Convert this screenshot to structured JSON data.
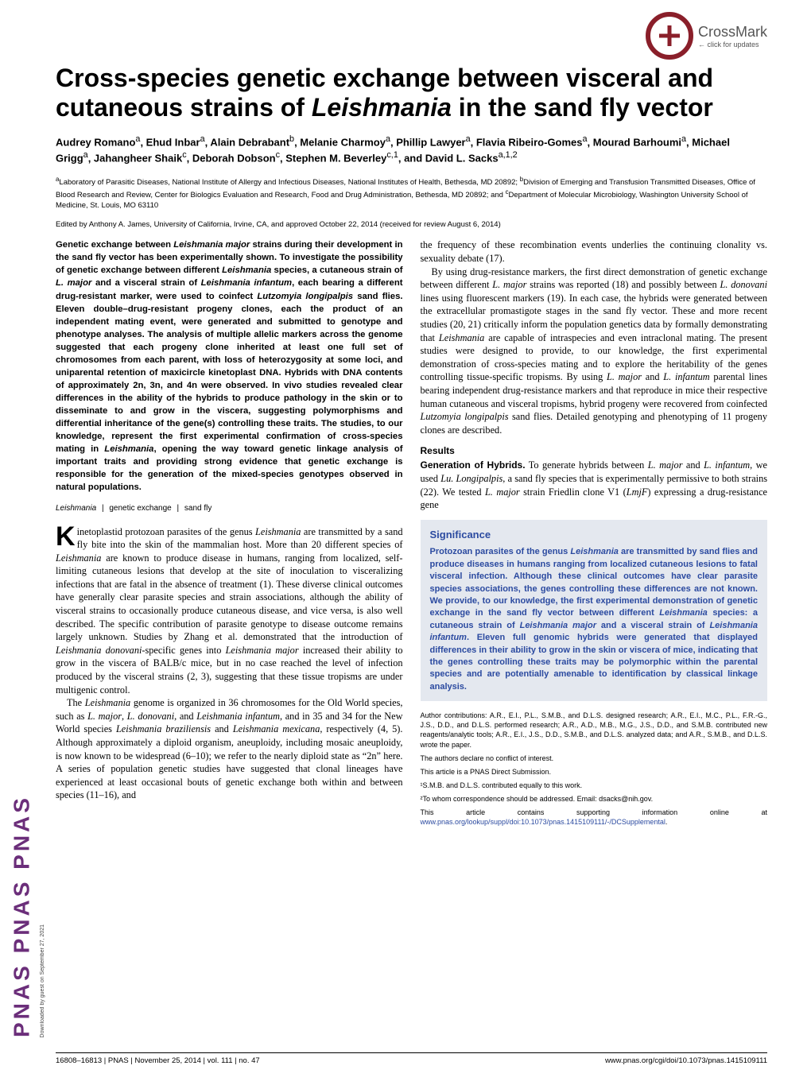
{
  "journal_sidebar": "PNAS  PNAS  PNAS",
  "crossmark": {
    "label": "CrossMark",
    "sub": "← click for updates"
  },
  "title_html": "Cross-species genetic exchange between visceral and cutaneous strains of Leishmania in the sand fly vector",
  "authors_html": "Audrey Romano<sup>a</sup>, Ehud Inbar<sup>a</sup>, Alain Debrabant<sup>b</sup>, Melanie Charmoy<sup>a</sup>, Phillip Lawyer<sup>a</sup>, Flavia Ribeiro-Gomes<sup>a</sup>, Mourad Barhoumi<sup>a</sup>, Michael Grigg<sup>a</sup>, Jahangheer Shaik<sup>c</sup>, Deborah Dobson<sup>c</sup>, Stephen M. Beverley<sup>c,1</sup>, and David L. Sacks<sup>a,1,2</sup>",
  "affiliations_html": "<sup>a</sup>Laboratory of Parasitic Diseases, National Institute of Allergy and Infectious Diseases, National Institutes of Health, Bethesda, MD 20892; <sup>b</sup>Division of Emerging and Transfusion Transmitted Diseases, Office of Blood Research and Review, Center for Biologics Evaluation and Research, Food and Drug Administration, Bethesda, MD 20892; and <sup>c</sup>Department of Molecular Microbiology, Washington University School of Medicine, St. Louis, MO 63110",
  "edited": "Edited by Anthony A. James, University of California, Irvine, CA, and approved October 22, 2014 (received for review August 6, 2014)",
  "abstract_html": "Genetic exchange between <span class='italic'>Leishmania major</span> strains during their development in the sand fly vector has been experimentally shown. To investigate the possibility of genetic exchange between different <span class='italic'>Leishmania</span> species, a cutaneous strain of <span class='italic'>L. major</span> and a visceral strain of <span class='italic'>Leishmania infantum</span>, each bearing a different drug-resistant marker, were used to coinfect <span class='italic'>Lutzomyia longipalpis</span> sand flies. Eleven double–drug-resistant progeny clones, each the product of an independent mating event, were generated and submitted to genotype and phenotype analyses. The analysis of multiple allelic markers across the genome suggested that each progeny clone inherited at least one full set of chromosomes from each parent, with loss of heterozygosity at some loci, and uniparental retention of maxicircle kinetoplast DNA. Hybrids with DNA contents of approximately 2n, 3n, and 4n were observed. In vivo studies revealed clear differences in the ability of the hybrids to produce pathology in the skin or to disseminate to and grow in the viscera, suggesting polymorphisms and differential inheritance of the gene(s) controlling these traits. The studies, to our knowledge, represent the first experimental confirmation of cross-species mating in <span class='italic'>Leishmania</span>, opening the way toward genetic linkage analysis of important traits and providing strong evidence that genetic exchange is responsible for the generation of the mixed-species genotypes observed in natural populations.",
  "keywords": [
    "Leishmania",
    "genetic exchange",
    "sand fly"
  ],
  "left_body_html": "<p class='body'><span class='dropcap'>K</span>inetoplastid protozoan parasites of the genus <span class='italic'>Leishmania</span> are transmitted by a sand fly bite into the skin of the mammalian host. More than 20 different species of <span class='italic'>Leishmania</span> are known to produce disease in humans, ranging from localized, self-limiting cutaneous lesions that develop at the site of inoculation to visceralizing infections that are fatal in the absence of treatment (1). These diverse clinical outcomes have generally clear parasite species and strain associations, although the ability of visceral strains to occasionally produce cutaneous disease, and vice versa, is also well described. The specific contribution of parasite genotype to disease outcome remains largely unknown. Studies by Zhang et al. demonstrated that the introduction of <span class='italic'>Leishmania donovani</span>-specific genes into <span class='italic'>Leishmania major</span> increased their ability to grow in the viscera of BALB/c mice, but in no case reached the level of infection produced by the visceral strains (2, 3), suggesting that these tissue tropisms are under multigenic control.</p><p class='body'>The <span class='italic'>Leishmania</span> genome is organized in 36 chromosomes for the Old World species, such as <span class='italic'>L. major</span>, <span class='italic'>L. donovani</span>, and <span class='italic'>Leishmania infantum</span>, and in 35 and 34 for the New World species <span class='italic'>Leishmania braziliensis</span> and <span class='italic'>Leishmania mexicana</span>, respectively (4, 5). Although approximately a diploid organism, aneuploidy, including mosaic aneuploidy, is now known to be widespread (6–10); we refer to the nearly diploid state as &ldquo;2n&rdquo; here. A series of population genetic studies have suggested that clonal lineages have experienced at least occasional bouts of genetic exchange both within and between species (11–16), and</p>",
  "right_top_html": "<p class='body' style='text-indent:0'>the frequency of these recombination events underlies the continuing clonality vs. sexuality debate (17).</p><p class='body'>By using drug-resistance markers, the first direct demonstration of genetic exchange between different <span class='italic'>L. major</span> strains was reported (18) and possibly between <span class='italic'>L. donovani</span> lines using fluorescent markers (19). In each case, the hybrids were generated between the extracellular promastigote stages in the sand fly vector. These and more recent studies (20, 21) critically inform the population genetics data by formally demonstrating that <span class='italic'>Leishmania</span> are capable of intraspecies and even intraclonal mating. The present studies were designed to provide, to our knowledge, the first experimental demonstration of cross-species mating and to explore the heritability of the genes controlling tissue-specific tropisms. By using <span class='italic'>L. major</span> and <span class='italic'>L. infantum</span> parental lines bearing independent drug-resistance markers and that reproduce in mice their respective human cutaneous and visceral tropisms, hybrid progeny were recovered from coinfected <span class='italic'>Lutzomyia longipalpis</span> sand flies. Detailed genotyping and phenotyping of 11 progeny clones are described.</p>",
  "results_heading": "Results",
  "results_html": "<p class='body' style='text-indent:0'><span class='run-in'>Generation of Hybrids.</span> To generate hybrids between <span class='italic'>L. major</span> and <span class='italic'>L. infantum</span>, we used <span class='italic'>Lu. Longipalpis</span>, a sand fly species that is experimentally permissive to both strains (22). We tested <span class='italic'>L. major</span> strain Friedlin clone V1 (<span class='italic'>LmjF</span>) expressing a drug-resistance gene</p>",
  "significance": {
    "heading": "Significance",
    "text_html": "Protozoan parasites of the genus <span class='italic'>Leishmania</span> are transmitted by sand flies and produce diseases in humans ranging from localized cutaneous lesions to fatal visceral infection. Although these clinical outcomes have clear parasite species associations, the genes controlling these differences are not known. We provide, to our knowledge, the first experimental demonstration of genetic exchange in the sand fly vector between different <span class='italic'>Leishmania</span> species: a cutaneous strain of <span class='italic'>Leishmania major</span> and a visceral strain of <span class='italic'>Leishmania infantum</span>. Eleven full genomic hybrids were generated that displayed differences in their ability to grow in the skin or viscera of mice, indicating that the genes controlling these traits may be polymorphic within the parental species and are potentially amenable to identification by classical linkage analysis."
  },
  "footnotes": {
    "contrib": "Author contributions: A.R., E.I., P.L., S.M.B., and D.L.S. designed research; A.R., E.I., M.C., P.L., F.R.-G., J.S., D.D., and D.L.S. performed research; A.R., A.D., M.B., M.G., J.S., D.D., and S.M.B. contributed new reagents/analytic tools; A.R., E.I., J.S., D.D., S.M.B., and D.L.S. analyzed data; and A.R., S.M.B., and D.L.S. wrote the paper.",
    "coi": "The authors declare no conflict of interest.",
    "direct": "This article is a PNAS Direct Submission.",
    "equal": "¹S.M.B. and D.L.S. contributed equally to this work.",
    "corr": "²To whom correspondence should be addressed. Email: dsacks@nih.gov.",
    "si_pre": "This article contains supporting information online at ",
    "si_link": "www.pnas.org/lookup/suppl/doi:10.1073/pnas.1415109111/-/DCSupplemental",
    "si_post": "."
  },
  "footer": {
    "left": "16808–16813  |  PNAS  |  November 25, 2014  |  vol. 111  |  no. 47",
    "right": "www.pnas.org/cgi/doi/10.1073/pnas.1415109111"
  },
  "download_note": "Downloaded by guest on September 27, 2021",
  "colors": {
    "pnas_purple": "#6b2e7a",
    "crossmark_red": "#8a1f2a",
    "sig_bg": "#e4e8ef",
    "sig_text": "#2b4aa0",
    "link": "#2b4aa0"
  }
}
